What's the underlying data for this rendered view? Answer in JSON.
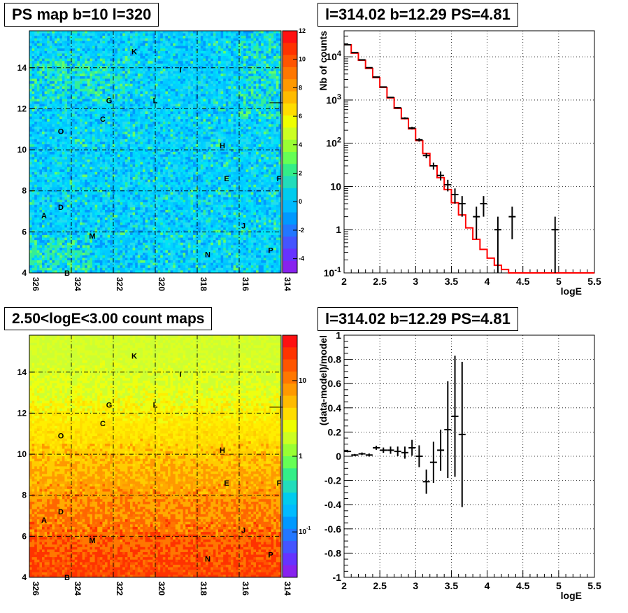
{
  "panels": {
    "ps_map_title": "PS map b=10 l=320",
    "spectrum_title": "l=314.02 b=12.29 PS=4.81",
    "count_map_title": "2.50<logE<3.00 count maps",
    "residual_title": "l=314.02 b=12.29 PS=4.81"
  },
  "chart_data": [
    {
      "type": "heatmap",
      "id": "ps-map",
      "title": "PS map b=10 l=320",
      "x_ticks": [
        "326",
        "324",
        "322",
        "320",
        "318",
        "316",
        "314"
      ],
      "x_range": [
        326,
        314
      ],
      "y_ticks": [
        "4",
        "6",
        "8",
        "10",
        "12",
        "14"
      ],
      "y_range": [
        4,
        15.8
      ],
      "colorbar_ticks": [
        "12",
        "10",
        "8",
        "6",
        "4",
        "2",
        "0",
        "-2",
        "-4"
      ],
      "colorbar_range": [
        -5,
        12
      ],
      "grid": true,
      "marker": {
        "l": 314.02,
        "b": 12.29
      },
      "sources": [
        {
          "name": "K",
          "l": 321.0,
          "b": 14.8
        },
        {
          "name": "I",
          "l": 318.8,
          "b": 13.9
        },
        {
          "name": "G",
          "l": 322.2,
          "b": 12.4
        },
        {
          "name": "L",
          "l": 320.0,
          "b": 12.4
        },
        {
          "name": "C",
          "l": 322.5,
          "b": 11.5
        },
        {
          "name": "O",
          "l": 324.5,
          "b": 10.9
        },
        {
          "name": "H",
          "l": 316.8,
          "b": 10.2
        },
        {
          "name": "E",
          "l": 316.6,
          "b": 8.6
        },
        {
          "name": "F",
          "l": 314.1,
          "b": 8.6
        },
        {
          "name": "D",
          "l": 324.5,
          "b": 7.2
        },
        {
          "name": "A",
          "l": 325.3,
          "b": 6.8
        },
        {
          "name": "J",
          "l": 315.8,
          "b": 6.3
        },
        {
          "name": "M",
          "l": 323.0,
          "b": 5.8
        },
        {
          "name": "N",
          "l": 317.5,
          "b": 4.9
        },
        {
          "name": "P",
          "l": 314.5,
          "b": 5.1
        },
        {
          "name": "B",
          "l": 324.2,
          "b": 4.0
        }
      ]
    },
    {
      "type": "line",
      "id": "spectrum",
      "title": "l=314.02 b=12.29 PS=4.81",
      "xlabel": "logE",
      "ylabel": "Nb of counts",
      "x_ticks": [
        "2",
        "2.5",
        "3",
        "3.5",
        "4",
        "4.5",
        "5",
        "5.5"
      ],
      "xlim": [
        2,
        5.5
      ],
      "y_scale": "log",
      "ylim": [
        0.1,
        40000
      ],
      "y_ticks": [
        "10^-1",
        "1",
        "10",
        "10^2",
        "10^3",
        "10^4"
      ],
      "grid": true,
      "series": [
        {
          "kind": "data-with-errors",
          "color": "#000000",
          "x": [
            2.05,
            2.15,
            2.25,
            2.35,
            2.45,
            2.55,
            2.65,
            2.75,
            2.85,
            2.95,
            3.05,
            3.15,
            3.25,
            3.35,
            3.45,
            3.55,
            3.65,
            3.85,
            3.95,
            4.15,
            4.35,
            4.95
          ],
          "y": [
            19000,
            12500,
            8500,
            5600,
            3400,
            2000,
            1150,
            660,
            380,
            225,
            120,
            52,
            30,
            18,
            11,
            6.5,
            4,
            2,
            4,
            1,
            2,
            1
          ],
          "err": [
            140,
            110,
            92,
            75,
            58,
            45,
            34,
            26,
            19,
            15,
            11,
            7,
            5.5,
            4.2,
            3.3,
            2.5,
            2,
            1.4,
            2,
            1,
            1.4,
            1
          ]
        },
        {
          "kind": "model-histogram",
          "color": "#ff0000",
          "edges": [
            2.0,
            2.1,
            2.2,
            2.3,
            2.4,
            2.5,
            2.6,
            2.7,
            2.8,
            2.9,
            3.0,
            3.1,
            3.2,
            3.3,
            3.4,
            3.5,
            3.6,
            3.7,
            3.8,
            3.9,
            4.0,
            4.1,
            4.2,
            4.3,
            5.5
          ],
          "values": [
            19000,
            12200,
            8300,
            5400,
            3300,
            1950,
            1120,
            640,
            370,
            215,
            115,
            58,
            30,
            16,
            8.5,
            4.2,
            2.2,
            1.1,
            0.6,
            0.35,
            0.22,
            0.15,
            0.12,
            0.1
          ]
        }
      ]
    },
    {
      "type": "heatmap",
      "id": "count-map",
      "title": "2.50<logE<3.00 count maps",
      "x_ticks": [
        "326",
        "324",
        "322",
        "320",
        "318",
        "316",
        "314"
      ],
      "x_range": [
        326,
        314
      ],
      "y_ticks": [
        "4",
        "6",
        "8",
        "10",
        "12",
        "14"
      ],
      "y_range": [
        4,
        15.8
      ],
      "colorbar_scale": "log",
      "colorbar_ticks": [
        "10",
        "1",
        "10^-1"
      ],
      "grid": true,
      "marker": {
        "l": 314.02,
        "b": 12.29
      },
      "sources": [
        {
          "name": "K",
          "l": 321.0,
          "b": 14.8
        },
        {
          "name": "I",
          "l": 318.8,
          "b": 13.9
        },
        {
          "name": "G",
          "l": 322.2,
          "b": 12.4
        },
        {
          "name": "L",
          "l": 320.0,
          "b": 12.4
        },
        {
          "name": "C",
          "l": 322.5,
          "b": 11.5
        },
        {
          "name": "O",
          "l": 324.5,
          "b": 10.9
        },
        {
          "name": "H",
          "l": 316.8,
          "b": 10.2
        },
        {
          "name": "E",
          "l": 316.6,
          "b": 8.6
        },
        {
          "name": "F",
          "l": 314.1,
          "b": 8.6
        },
        {
          "name": "D",
          "l": 324.5,
          "b": 7.2
        },
        {
          "name": "A",
          "l": 325.3,
          "b": 6.8
        },
        {
          "name": "J",
          "l": 315.8,
          "b": 6.3
        },
        {
          "name": "M",
          "l": 323.0,
          "b": 5.8
        },
        {
          "name": "N",
          "l": 317.5,
          "b": 4.9
        },
        {
          "name": "P",
          "l": 314.5,
          "b": 5.1
        },
        {
          "name": "B",
          "l": 324.2,
          "b": 4.0
        }
      ]
    },
    {
      "type": "scatter",
      "id": "residual",
      "title": "l=314.02 b=12.29 PS=4.81",
      "xlabel": "logE",
      "ylabel": "(data-model)/model",
      "x_ticks": [
        "2",
        "2.5",
        "3",
        "3.5",
        "4",
        "4.5",
        "5",
        "5.5"
      ],
      "xlim": [
        2,
        5.5
      ],
      "y_ticks": [
        "-1",
        "-0.8",
        "-0.6",
        "-0.4",
        "-0.2",
        "0",
        "0.2",
        "0.4",
        "0.6",
        "0.8",
        "1"
      ],
      "ylim": [
        -1,
        1
      ],
      "grid": true,
      "series": [
        {
          "kind": "data-with-errors",
          "color": "#000000",
          "x": [
            2.05,
            2.15,
            2.25,
            2.35,
            2.45,
            2.55,
            2.65,
            2.75,
            2.85,
            2.95,
            3.05,
            3.15,
            3.25,
            3.35,
            3.45,
            3.55,
            3.65
          ],
          "y": [
            0.04,
            0.01,
            0.02,
            0.01,
            0.07,
            0.05,
            0.05,
            0.04,
            0.03,
            0.07,
            0.0,
            -0.21,
            -0.05,
            0.05,
            0.22,
            0.33,
            0.18
          ],
          "err": [
            0.007,
            0.009,
            0.011,
            0.013,
            0.017,
            0.022,
            0.03,
            0.04,
            0.05,
            0.065,
            0.09,
            0.1,
            0.17,
            0.17,
            0.4,
            0.5,
            0.6
          ]
        }
      ]
    }
  ]
}
